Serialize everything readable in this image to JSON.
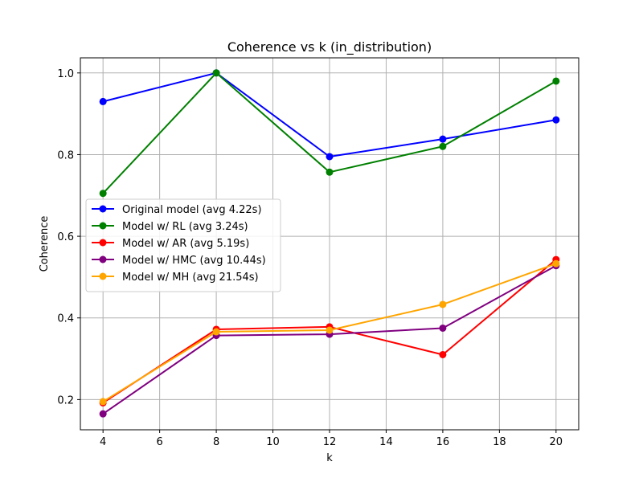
{
  "chart_data": {
    "type": "line",
    "title": "Coherence vs k (in_distribution)",
    "xlabel": "k",
    "ylabel": "Coherence",
    "x": [
      4,
      8,
      12,
      16,
      20
    ],
    "xlim": [
      3.2,
      20.8
    ],
    "ylim": [
      0.126,
      1.037
    ],
    "xticks": [
      4,
      6,
      8,
      10,
      12,
      14,
      16,
      18,
      20
    ],
    "yticks": [
      0.2,
      0.4,
      0.6,
      0.8,
      1.0
    ],
    "ytick_labels": [
      "0.2",
      "0.4",
      "0.6",
      "0.8",
      "1.0"
    ],
    "grid": true,
    "legend_position": "center-left",
    "series": [
      {
        "name": "Original model (avg 4.22s)",
        "color": "#0000ff",
        "values": [
          0.93,
          1.0,
          0.795,
          0.838,
          0.885
        ]
      },
      {
        "name": "Model w/ RL (avg 3.24s)",
        "color": "#008000",
        "values": [
          0.705,
          1.0,
          0.757,
          0.82,
          0.98
        ]
      },
      {
        "name": "Model w/ AR (avg 5.19s)",
        "color": "#ff0000",
        "values": [
          0.192,
          0.372,
          0.378,
          0.31,
          0.543
        ]
      },
      {
        "name": "Model w/ HMC (avg 10.44s)",
        "color": "#800080",
        "values": [
          0.165,
          0.357,
          0.36,
          0.375,
          0.528
        ]
      },
      {
        "name": "Model w/ MH (avg 21.54s)",
        "color": "#ffa500",
        "values": [
          0.195,
          0.366,
          0.37,
          0.433,
          0.533
        ]
      }
    ]
  }
}
